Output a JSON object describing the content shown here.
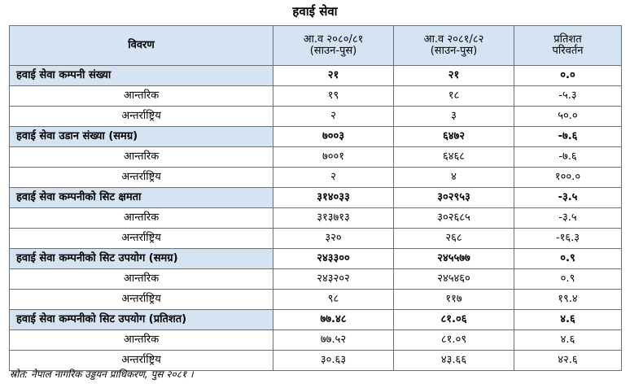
{
  "title": "हवाई सेवा",
  "header": {
    "col0": "विवरण",
    "col1_line1": "आ.व २०८०/८१",
    "col1_line2": "(साउन-पुस)",
    "col2_line1": "आ.व २०८१/८२",
    "col2_line2": "(साउन-पुस)",
    "col3_line1": "प्रतिशत",
    "col3_line2": "परिवर्तन"
  },
  "rows": [
    {
      "label": "हवाई सेवा कम्पनी संख्या",
      "v1": "२१",
      "v2": "२१",
      "v3": "०.०"
    },
    {
      "label": "आन्तरिक",
      "v1": "१९",
      "v2": "१८",
      "v3": "-५.३"
    },
    {
      "label": "अन्तर्राष्ट्रिय",
      "v1": "२",
      "v2": "३",
      "v3": "५०.०"
    },
    {
      "label": "हवाई सेवा उडान संख्या (समग्र)",
      "v1": "७००३",
      "v2": "६४७२",
      "v3": "-७.६"
    },
    {
      "label": "आन्तरिक",
      "v1": "७००१",
      "v2": "६४६८",
      "v3": "-७.६"
    },
    {
      "label": "अन्तर्राष्ट्रिय",
      "v1": "२",
      "v2": "४",
      "v3": "१००.०"
    },
    {
      "label": "हवाई सेवा कम्पनीको सिट क्षमता",
      "v1": "३१४०३३",
      "v2": "३०२९५३",
      "v3": "-३.५"
    },
    {
      "label": "आन्तरिक",
      "v1": "३१३७१३",
      "v2": "३०२६८५",
      "v3": "-३.५"
    },
    {
      "label": "अन्तर्राष्ट्रिय",
      "v1": "३२०",
      "v2": "२६८",
      "v3": "-१६.३"
    },
    {
      "label": "हवाई सेवा कम्पनीको सिट उपयोग (समग्र)",
      "v1": "२४३३००",
      "v2": "२४५५७७",
      "v3": "०.९"
    },
    {
      "label": "आन्तरिक",
      "v1": "२४३२०२",
      "v2": "२४५४६०",
      "v3": "०.९"
    },
    {
      "label": "अन्तर्राष्ट्रिय",
      "v1": "९८",
      "v2": "११७",
      "v3": "१९.४"
    },
    {
      "label": "हवाई सेवा कम्पनीको सिट उपयोग (प्रतिशत)",
      "v1": "७७.४८",
      "v2": "८१.०६",
      "v3": "४.६"
    },
    {
      "label": "आन्तरिक",
      "v1": "७७.५२",
      "v2": "८१.०९",
      "v3": "४.६"
    },
    {
      "label": "अन्तर्राष्ट्रिय",
      "v1": "३०.६३",
      "v2": "४३.६६",
      "v3": "४२.६"
    }
  ],
  "source": "स्रोत: नेपाल नागरिक उड्डयन प्राधिकरण, पुस २०८१ ।",
  "colors": {
    "header_bg": "#d5e4f2",
    "border": "#6e6e6e"
  }
}
